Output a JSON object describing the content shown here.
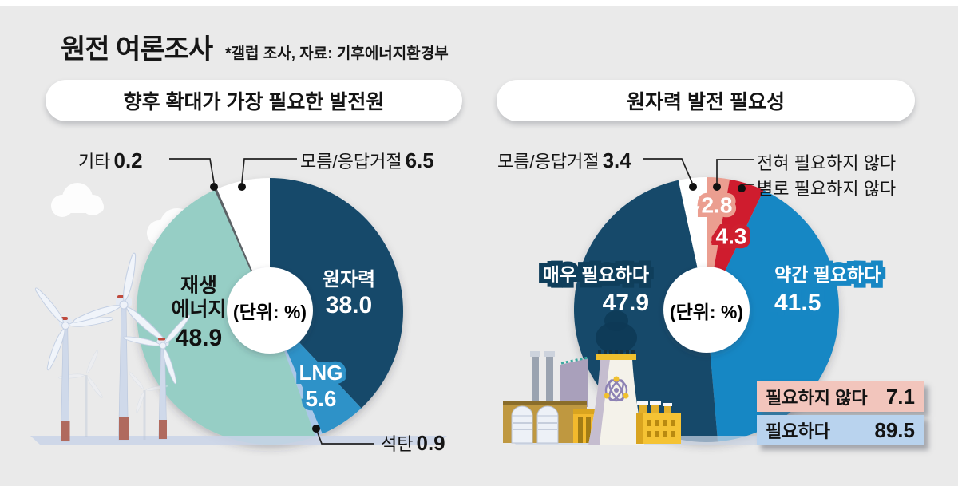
{
  "header": {
    "title": "원전 여론조사",
    "subtitle": "*갤럽 조사, 자료: 기후에너지환경부"
  },
  "unit_label": "(단위: %)",
  "colors": {
    "background": "#eaeaea",
    "nuclear_navy": "#15496b",
    "lng_blue": "#2e92c8",
    "coal_light_blue": "#aac7e8",
    "renewable_teal": "#96cec5",
    "etc_gray": "#5c6266",
    "somewhat_blue": "#1787c4",
    "not_at_all_pink": "#eb9e90",
    "not_really_red": "#cf1f2f",
    "badge_pink": "#f2c5bc",
    "badge_blue": "#b9d3ee"
  },
  "chart_data": [
    {
      "type": "pie",
      "title": "향후 확대가 가장 필요한 발전원",
      "unit": "%",
      "start_angle_deg": 0,
      "clockwise": true,
      "slices": [
        {
          "label": "원자력",
          "value": 38.0,
          "color": "#15496b"
        },
        {
          "label": "LNG",
          "value": 5.6,
          "color": "#2e92c8"
        },
        {
          "label": "석탄",
          "value": 0.9,
          "color": "#aac7e8"
        },
        {
          "label": "재생에너지",
          "value": 48.9,
          "color": "#96cec5"
        },
        {
          "label": "기타",
          "value": 0.2,
          "color": "#5c6266"
        },
        {
          "label": "모름/응답거절",
          "value": 6.5,
          "color": "#ffffff"
        }
      ]
    },
    {
      "type": "pie",
      "title": "원자력 발전 필요성",
      "unit": "%",
      "start_angle_deg": 0,
      "clockwise": true,
      "slices": [
        {
          "label": "전혀 필요하지 않다",
          "value": 2.8,
          "color": "#eb9e90"
        },
        {
          "label": "별로 필요하지 않다",
          "value": 4.3,
          "color": "#cf1f2f"
        },
        {
          "label": "약간 필요하다",
          "value": 41.5,
          "color": "#1787c4"
        },
        {
          "label": "매우 필요하다",
          "value": 47.9,
          "color": "#12486b"
        },
        {
          "label": "모름/응답거절",
          "value": 3.4,
          "color": "#ffffff"
        }
      ],
      "aggregates": [
        {
          "label": "필요하지 않다",
          "value": 7.1
        },
        {
          "label": "필요하다",
          "value": 89.5
        }
      ]
    }
  ],
  "display": {
    "left": {
      "etc": {
        "label": "기타",
        "value": "0.2"
      },
      "dk": {
        "label": "모름/응답거절",
        "value": "6.5"
      },
      "nuclear": {
        "label": "원자력",
        "value": "38.0"
      },
      "renew": {
        "line1": "재생",
        "line2": "에너지",
        "value": "48.9"
      },
      "lng": {
        "label": "LNG",
        "value": "5.6"
      },
      "coal": {
        "label": "석탄",
        "value": "0.9"
      }
    },
    "right": {
      "dk": {
        "label": "모름/응답거절",
        "value": "3.4"
      },
      "not_at_all": {
        "label": "전혀 필요하지 않다",
        "value": "2.8"
      },
      "not_really": {
        "label": "별로 필요하지 않다",
        "value": "4.3"
      },
      "very": {
        "label": "매우 필요하다",
        "value": "47.9"
      },
      "somewhat": {
        "label": "약간 필요하다",
        "value": "41.5"
      },
      "sum_not": {
        "label": "필요하지 않다",
        "value": "7.1"
      },
      "sum_yes": {
        "label": "필요하다",
        "value": "89.5"
      }
    }
  }
}
